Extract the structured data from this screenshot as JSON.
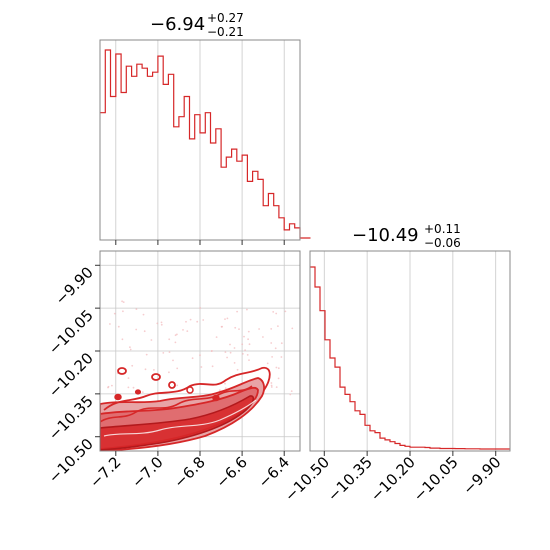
{
  "chart_data": [
    {
      "type": "histogram",
      "panel": "top-left",
      "title": {
        "value": "−6.94",
        "plus": "+0.27",
        "minus": "−0.21"
      },
      "xlim": [
        -7.275,
        -6.325
      ],
      "color": "#d62728",
      "bins": {
        "start": -7.275,
        "width": 0.025,
        "counts": [
          62,
          93,
          70,
          91,
          72,
          85,
          80,
          86,
          84,
          80,
          82,
          90,
          76,
          81,
          55,
          60,
          70,
          49,
          61,
          52,
          62,
          47,
          54,
          35,
          40,
          44,
          38,
          41,
          28,
          33,
          29,
          16,
          22,
          16,
          10,
          4,
          7,
          5,
          0,
          0
        ]
      }
    },
    {
      "type": "contour",
      "panel": "bottom-left",
      "xlim": [
        -7.275,
        -6.325
      ],
      "ylim": [
        -10.55,
        -9.85
      ],
      "xticks": [
        -7.2,
        -7.0,
        -6.8,
        -6.6,
        -6.4
      ],
      "xtick_labels": [
        "−7.2",
        "−7.0",
        "−6.8",
        "−6.6",
        "−6.4"
      ],
      "yticks": [
        -9.9,
        -10.05,
        -10.2,
        -10.35,
        -10.5
      ],
      "ytick_labels": [
        "−9.90",
        "−10.05",
        "−10.20",
        "−10.35",
        "−10.50"
      ],
      "color": "#d62728",
      "grid": true
    },
    {
      "type": "histogram",
      "panel": "bottom-right",
      "title": {
        "value": "−10.49",
        "plus": "+0.11",
        "minus": "−0.06"
      },
      "xlim": [
        -10.55,
        -9.85
      ],
      "xticks": [
        -10.5,
        -10.35,
        -10.2,
        -10.05,
        -9.9
      ],
      "xtick_labels": [
        "−10.50",
        "−10.35",
        "−10.20",
        "−10.05",
        "−9.90"
      ],
      "color": "#d62728",
      "bins": {
        "start": -10.55,
        "width": 0.0175,
        "counts": [
          100,
          89,
          76,
          60,
          50,
          45,
          34,
          30,
          26,
          21,
          19,
          13,
          10,
          9,
          6,
          5,
          4,
          3,
          2,
          1.5,
          1,
          1,
          1,
          0.8,
          0.5,
          0.5,
          0.3,
          0.3,
          0.3,
          0.2,
          0.2,
          0.1,
          0.1,
          0.1,
          0,
          0,
          0,
          0,
          0,
          0
        ]
      }
    }
  ]
}
